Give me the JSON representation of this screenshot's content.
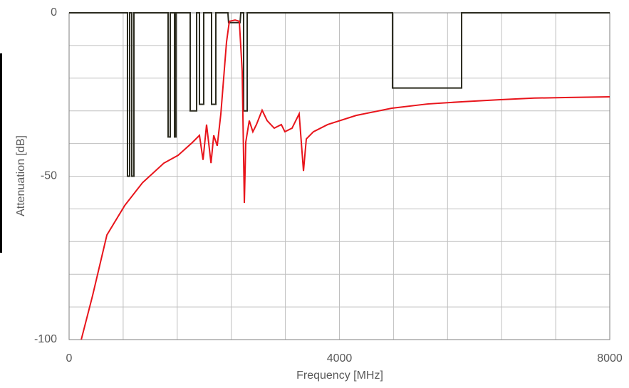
{
  "chart_data": {
    "type": "line",
    "xlabel": "Frequency [MHz]",
    "ylabel": "Attenuation [dB]",
    "xlim": [
      0,
      8000
    ],
    "ylim": [
      -100,
      0
    ],
    "xticks": [
      0,
      4000,
      8000
    ],
    "yticks": [
      -100,
      -50,
      0
    ],
    "xgrid": [
      800,
      1600,
      2400,
      3200,
      4800,
      5600,
      6400,
      7200
    ],
    "ygrid": [
      -90,
      -80,
      -70,
      -60,
      -40,
      -30,
      -20,
      -10
    ],
    "grid": true,
    "series": [
      {
        "color": "#2b2b1f",
        "x": [
          0,
          864,
          864,
          896,
          896,
          927,
          927,
          959,
          959,
          1465,
          1465,
          1497,
          1497,
          1560,
          1560,
          1581,
          1581,
          1792,
          1792,
          1887,
          1887,
          1929,
          1929,
          1992,
          1992,
          2108,
          2108,
          2171,
          2171,
          2350,
          2360,
          2530,
          2540,
          2582,
          2582,
          2635,
          2635,
          4785,
          4785,
          5808,
          5808,
          8000
        ],
        "values": [
          0,
          0,
          -50,
          -50,
          0,
          0,
          -50,
          -50,
          0,
          0,
          -38,
          -38,
          0,
          0,
          -38,
          -38,
          0,
          0,
          -30,
          -30,
          0,
          0,
          -28,
          -28,
          0,
          0,
          -28,
          -28,
          0,
          0,
          -3,
          -3,
          0,
          0,
          -30,
          -30,
          0,
          0,
          -23,
          -23,
          0,
          0
        ]
      },
      {
        "color": "#e8141b",
        "x": [
          180,
          348,
          559,
          822,
          1086,
          1402,
          1613,
          1700,
          1823,
          1929,
          1982,
          2034,
          2100,
          2140,
          2192,
          2245,
          2329,
          2371,
          2456,
          2519,
          2561,
          2593,
          2614,
          2666,
          2719,
          2772,
          2856,
          2930,
          3035,
          3140,
          3193,
          3299,
          3404,
          3468,
          3510,
          3615,
          3826,
          4248,
          4775,
          5302,
          5829,
          6356,
          6883,
          7410,
          8000
        ],
        "values": [
          -100,
          -86.5,
          -68,
          -59,
          -52,
          -46,
          -43.6,
          -42,
          -39.7,
          -37.5,
          -45,
          -34.2,
          -46,
          -37.5,
          -40.7,
          -31,
          -9,
          -2.6,
          -2.2,
          -2.6,
          -17.9,
          -58.2,
          -39.6,
          -33,
          -36.4,
          -34.2,
          -29.8,
          -33,
          -35.3,
          -34.2,
          -36.4,
          -35.3,
          -30.9,
          -48.4,
          -38.6,
          -36.4,
          -34.2,
          -31.4,
          -29.2,
          -27.9,
          -27.2,
          -26.6,
          -26.1,
          -25.9,
          -25.7
        ]
      }
    ]
  }
}
